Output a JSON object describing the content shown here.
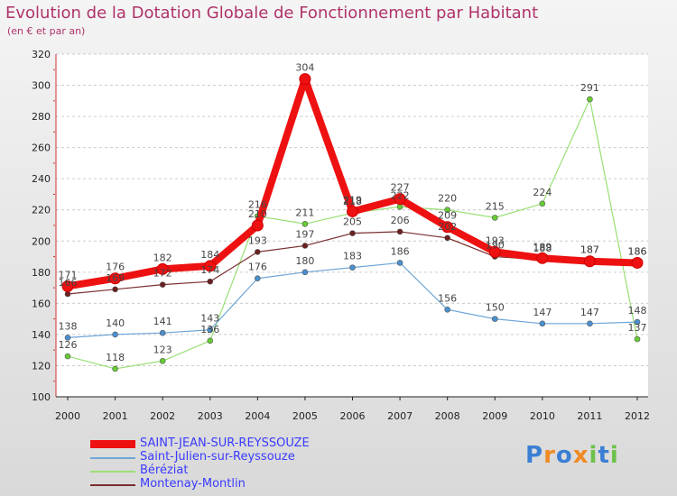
{
  "title": "Evolution de la Dotation Globale de Fonctionnement par Habitant",
  "subtitle": "(en € et par an)",
  "logo": {
    "letters": [
      "P",
      "r",
      "o",
      "x",
      "i",
      "t",
      "i"
    ]
  },
  "chart_data": {
    "type": "line",
    "categories": [
      "2000",
      "2001",
      "2002",
      "2003",
      "2004",
      "2005",
      "2006",
      "2007",
      "2008",
      "2009",
      "2010",
      "2011",
      "2012"
    ],
    "ylim": [
      100,
      320
    ],
    "yticks": [
      100,
      120,
      140,
      160,
      180,
      200,
      220,
      240,
      260,
      280,
      300,
      320
    ],
    "grid": "horizontal dashed",
    "series": [
      {
        "name": "SAINT-JEAN-SUR-REYSSOUZE",
        "color": "#ee1111",
        "dot": "#ee1111",
        "values": [
          171,
          176,
          182,
          184,
          210,
          304,
          219,
          227,
          209,
          193,
          189,
          187,
          186
        ]
      },
      {
        "name": "Saint-Julien-sur-Reyssouze",
        "color": "#6fa6d6",
        "dot": "#4a90d0",
        "values": [
          138,
          140,
          141,
          143,
          176,
          180,
          183,
          186,
          156,
          150,
          147,
          147,
          148
        ]
      },
      {
        "name": "Béréziat",
        "color": "#99e075",
        "dot": "#66cc33",
        "values": [
          126,
          118,
          123,
          136,
          216,
          211,
          218,
          222,
          220,
          215,
          224,
          291,
          137
        ]
      },
      {
        "name": "Montenay-Montlin",
        "color": "#7a2e2e",
        "dot": "#6b2020",
        "values": [
          166,
          169,
          172,
          174,
          193,
          197,
          205,
          206,
          202,
          190,
          188,
          187,
          186
        ]
      }
    ]
  }
}
